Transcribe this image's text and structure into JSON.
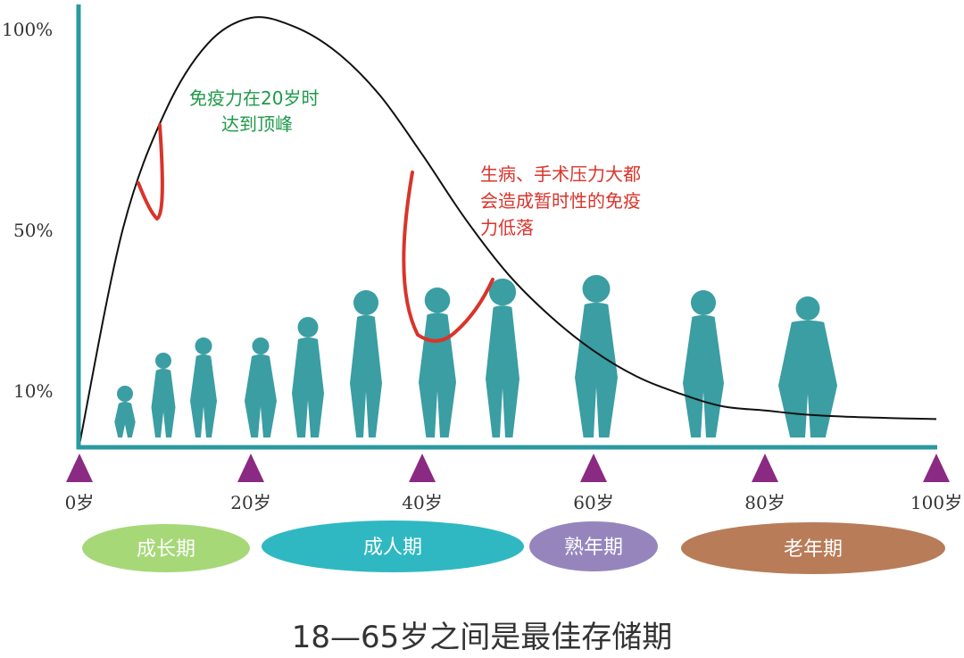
{
  "chart_data": {
    "type": "line",
    "title": "",
    "xlabel": "",
    "ylabel": "",
    "x_ticks": [
      "0岁",
      "20岁",
      "40岁",
      "60岁",
      "80岁",
      "100岁"
    ],
    "y_ticks": [
      "100%",
      "50%",
      "10%"
    ],
    "xlim": [
      0,
      100
    ],
    "series": [
      {
        "name": "",
        "x": [
          0,
          5,
          10,
          15,
          20,
          25,
          30,
          35,
          40,
          45,
          50,
          55,
          60,
          65,
          70,
          75,
          80,
          85,
          90,
          95,
          100
        ],
        "y": [
          0,
          50,
          78,
          94,
          100,
          98,
          92,
          82,
          68,
          53,
          40,
          30,
          22,
          16,
          12,
          9,
          8,
          7,
          6.5,
          6.2,
          6
        ]
      }
    ],
    "annotations": [
      {
        "lines": [
          "免疫力在20岁时",
          "达到顶峰"
        ],
        "color": "#1e9a4a"
      },
      {
        "lines": [
          "生病、手术压力大都",
          "会造成暂时性的免疫",
          "力低落"
        ],
        "color": "#d9342b"
      }
    ],
    "life_stages": [
      {
        "label": "成长期",
        "color": "#a6d877"
      },
      {
        "label": "成人期",
        "color": "#2fb8c2"
      },
      {
        "label": "熟年期",
        "color": "#9685bd"
      },
      {
        "label": "老年期",
        "color": "#b87c58"
      }
    ],
    "colors": {
      "axis": "#2b9aa0",
      "curve": "#111111",
      "dip": "#d9342b",
      "marker": "#8a2a82",
      "silhouette": "#3a9ea3"
    },
    "grid": false,
    "legend": "none"
  },
  "caption": "18—65岁之间是最佳存储期"
}
